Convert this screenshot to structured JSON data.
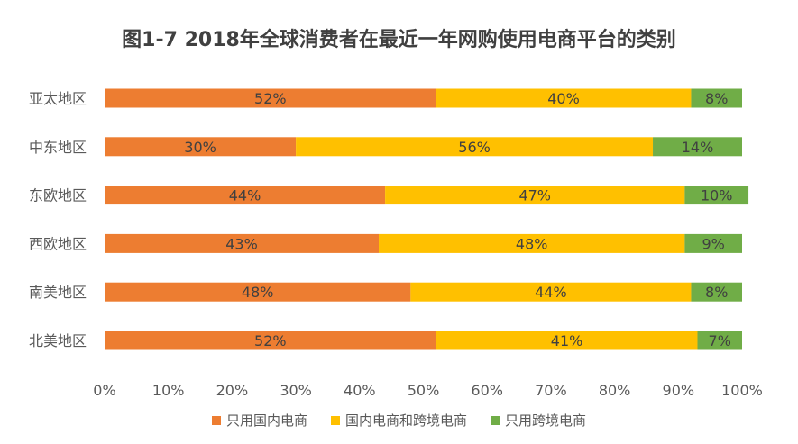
{
  "chart_data": {
    "type": "bar",
    "orientation": "horizontal",
    "stacked": true,
    "percent_stacked": true,
    "title": "图1-7  2018年全球消费者在最近一年网购使用电商平台的类别",
    "categories": [
      "亚太地区",
      "中东地区",
      "东欧地区",
      "西欧地区",
      "南美地区",
      "北美地区"
    ],
    "series": [
      {
        "name": "只用国内电商",
        "color": "#ED7D31",
        "values": [
          52,
          30,
          44,
          43,
          48,
          52
        ]
      },
      {
        "name": "国内电商和跨境电商",
        "color": "#FFC000",
        "values": [
          40,
          56,
          47,
          48,
          44,
          41
        ]
      },
      {
        "name": "只用跨境电商",
        "color": "#70AD47",
        "values": [
          8,
          14,
          10,
          9,
          8,
          7
        ]
      }
    ],
    "data_labels": [
      [
        "52%",
        "40%",
        "8%"
      ],
      [
        "30%",
        "56%",
        "14%"
      ],
      [
        "44%",
        "47%",
        "10%"
      ],
      [
        "43%",
        "48%",
        "9%"
      ],
      [
        "48%",
        "44%",
        "8%"
      ],
      [
        "52%",
        "41%",
        "7%"
      ]
    ],
    "xlim": [
      0,
      100
    ],
    "x_ticks": [
      "0%",
      "10%",
      "20%",
      "30%",
      "40%",
      "50%",
      "60%",
      "70%",
      "80%",
      "90%",
      "100%"
    ],
    "xlabel": "",
    "ylabel": "",
    "grid": false,
    "legend_position": "bottom"
  }
}
